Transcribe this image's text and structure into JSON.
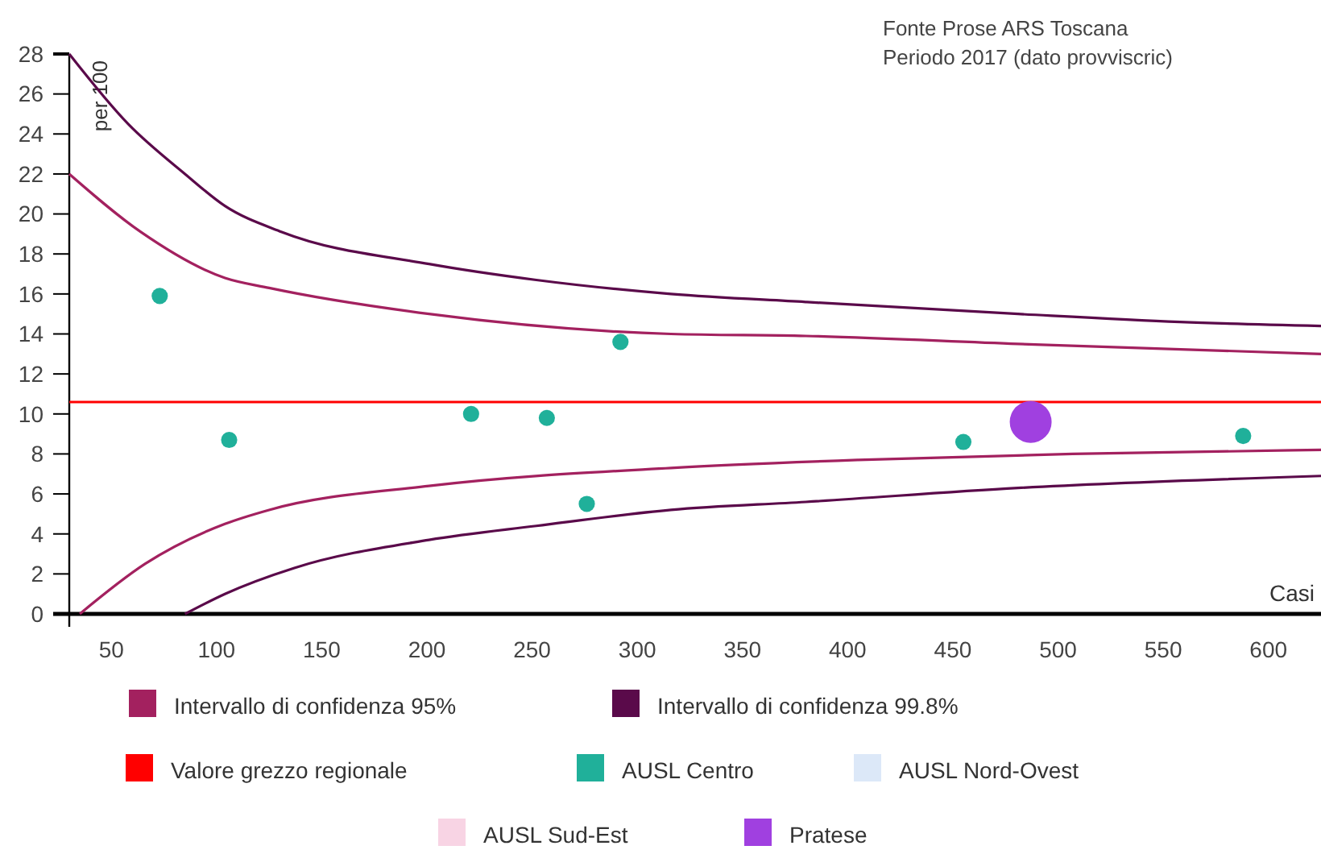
{
  "chart_data": {
    "type": "bubble",
    "ylabel": "per 100",
    "xlabel": "Casi",
    "annotations": [
      "Fonte Prose ARS Toscana",
      "Periodo 2017 (dato provviscric)"
    ],
    "xlim": [
      30,
      625
    ],
    "xticks": [
      50,
      100,
      150,
      200,
      250,
      300,
      350,
      400,
      450,
      500,
      550,
      600
    ],
    "ylim": [
      0,
      28
    ],
    "yticks": [
      0,
      2,
      4,
      6,
      8,
      10,
      12,
      14,
      16,
      18,
      20,
      22,
      24,
      26,
      28
    ],
    "grid": false,
    "legend": "bottom",
    "ref_lines": [
      {
        "axis": "y",
        "value": 10.6,
        "label": "Valore grezzo regionale",
        "color": "#ff0000"
      }
    ],
    "series": [
      {
        "name": "Intervallo di confidenza 95%",
        "type": "line",
        "color": "#a3215f",
        "x": [
          30,
          64,
          104,
          125,
          201,
          316,
          380,
          481,
          625
        ],
        "values": [
          22.0,
          19.1,
          16.8,
          16.3,
          15.0,
          14.0,
          13.9,
          13.5,
          13.0
        ]
      },
      {
        "type": "line",
        "color": "#a3215f",
        "x": [
          35,
          66,
          104,
          125,
          201,
          316,
          405,
          507,
          625
        ],
        "values": [
          0,
          2.5,
          4.5,
          5.2,
          6.4,
          7.3,
          7.7,
          8.0,
          8.2
        ]
      },
      {
        "name": "Intervallo di confidenza 99.8%",
        "type": "line",
        "color": "#5a0a4a",
        "x": [
          30,
          58,
          85,
          104,
          131,
          201,
          252,
          316,
          380,
          481,
          558,
          625
        ],
        "values": [
          28,
          24.5,
          22,
          20.4,
          19.1,
          17.5,
          16.7,
          16.0,
          15.6,
          15.0,
          14.6,
          14.4
        ]
      },
      {
        "type": "line",
        "color": "#5a0a4a",
        "x": [
          85,
          104,
          137,
          201,
          252,
          316,
          380,
          481,
          625
        ],
        "values": [
          0,
          1.0,
          2.3,
          3.7,
          4.4,
          5.2,
          5.6,
          6.3,
          6.9
        ]
      },
      {
        "name": "AUSL Centro",
        "color": "#20b09a",
        "x": [
          73,
          106,
          221,
          257,
          276,
          292,
          455,
          588
        ],
        "values": [
          15.9,
          8.7,
          10.0,
          9.8,
          5.5,
          13.6,
          8.6,
          8.9
        ],
        "sizes": [
          0.15,
          0.15,
          0.15,
          0.15,
          0.15,
          0.15,
          0.15,
          0.15
        ]
      },
      {
        "name": "AUSL Nord-Ovest",
        "color": "#dce8f8"
      },
      {
        "name": "AUSL Sud-Est",
        "color": "#f8d4e4"
      },
      {
        "name": "Pratese",
        "color": "#a040e0",
        "x": [
          487
        ],
        "values": [
          9.6
        ],
        "sizes": [
          1
        ]
      }
    ]
  }
}
